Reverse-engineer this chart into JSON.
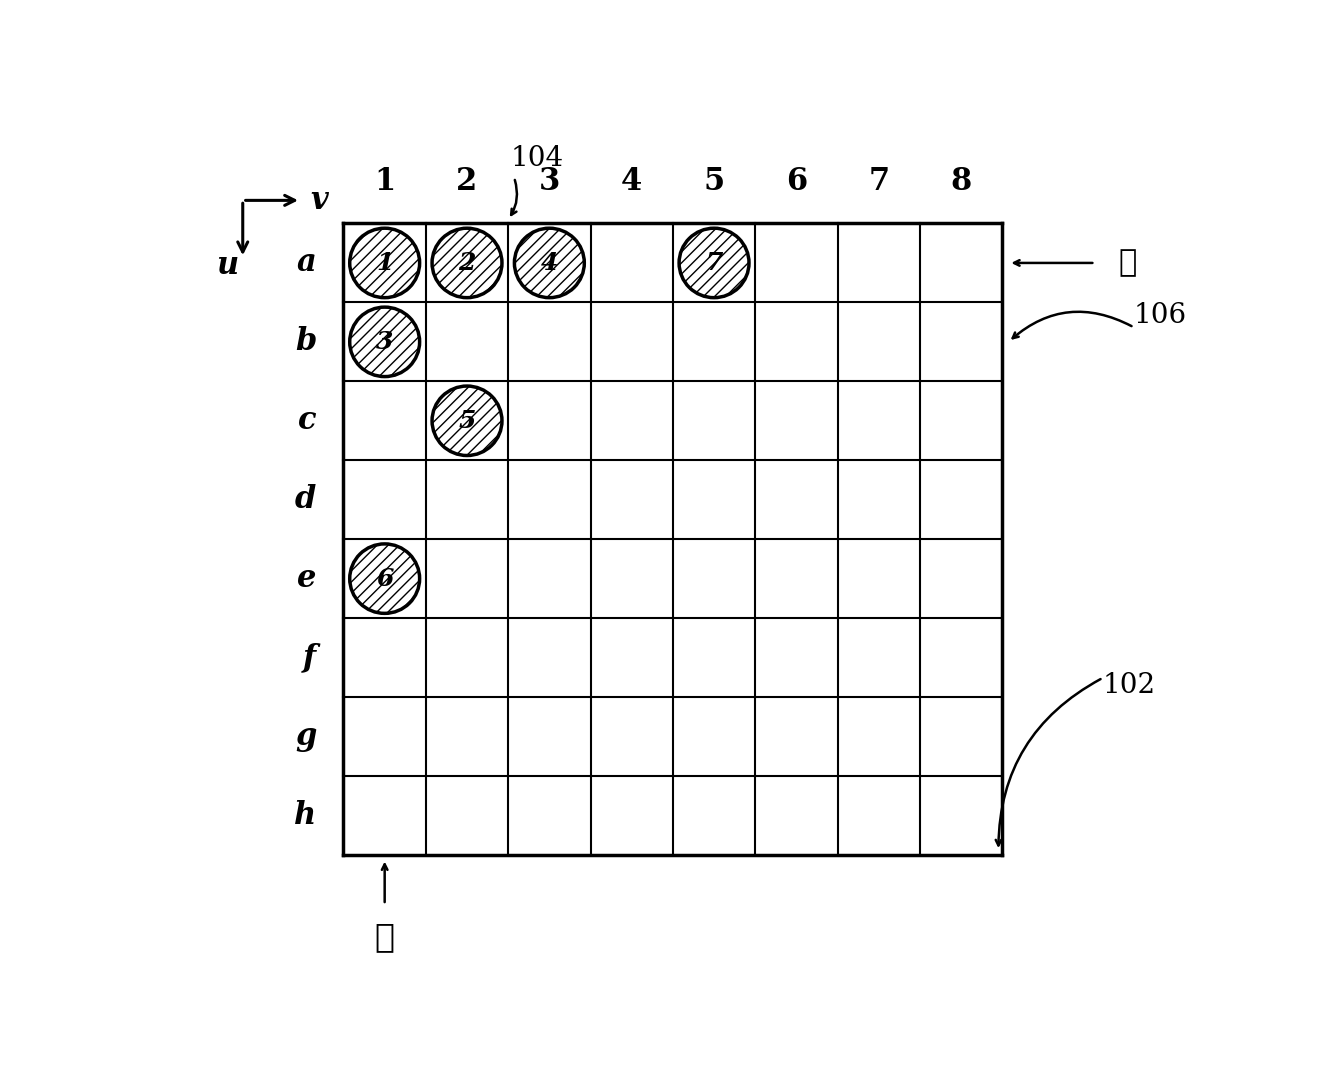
{
  "grid_rows": 8,
  "grid_cols": 8,
  "row_labels": [
    "a",
    "b",
    "c",
    "d",
    "e",
    "f",
    "g",
    "h"
  ],
  "col_labels": [
    "1",
    "2",
    "3",
    "4",
    "5",
    "6",
    "7",
    "8"
  ],
  "circles": [
    {
      "row": 0,
      "col": 0,
      "label": "1"
    },
    {
      "row": 0,
      "col": 1,
      "label": "2"
    },
    {
      "row": 0,
      "col": 2,
      "label": "4"
    },
    {
      "row": 0,
      "col": 4,
      "label": "7"
    },
    {
      "row": 1,
      "col": 0,
      "label": "3"
    },
    {
      "row": 2,
      "col": 1,
      "label": "5"
    },
    {
      "row": 4,
      "col": 0,
      "label": "6"
    }
  ],
  "label_lie": "列",
  "label_lan": "栏",
  "label_u": "u",
  "label_v": "v",
  "text_104": "104",
  "text_106": "106",
  "text_102": "102",
  "grid_color": "#000000",
  "circle_hatch": "///",
  "background_color": "#ffffff"
}
